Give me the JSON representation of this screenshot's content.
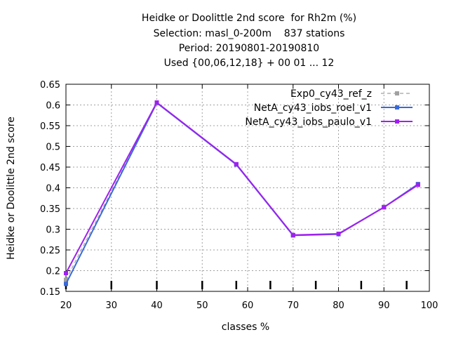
{
  "chart_data": {
    "type": "line",
    "title_lines": [
      "Heidke or Doolittle 2nd score  for Rh2m (%)",
      "Selection: masl_0-200m    837 stations",
      "Period: 20190801-20190810",
      "Used {00,06,12,18} + 00 01 ... 12"
    ],
    "xlabel": "classes %",
    "ylabel": "Heidke or Doolittle 2nd score",
    "xlim": [
      20,
      100
    ],
    "ylim": [
      0.15,
      0.65
    ],
    "xticks": [
      "20",
      "30",
      "40",
      "50",
      "60",
      "70",
      "80",
      "90",
      "100"
    ],
    "yticks": [
      "0.15",
      "0.2",
      "0.25",
      "0.3",
      "0.35",
      "0.4",
      "0.45",
      "0.5",
      "0.55",
      "0.6",
      "0.65"
    ],
    "grid": true,
    "legend_position": "top-right",
    "class_marks": [
      20,
      30,
      40,
      50,
      57.5,
      65,
      75,
      85,
      95
    ],
    "series": [
      {
        "name": "Exp0_cy43_ref_z",
        "color": "#a0a0a0",
        "dash": true,
        "x": [
          20,
          40,
          57.5,
          70,
          80,
          90,
          97.5
        ],
        "y": [
          0.178,
          0.605,
          0.457,
          0.286,
          0.289,
          0.354,
          0.409
        ]
      },
      {
        "name": "NetA_cy43_iobs_roel_v1",
        "color": "#3a6ad8",
        "dash": false,
        "x": [
          20,
          40,
          57.5,
          70,
          80,
          90,
          97.5
        ],
        "y": [
          0.168,
          0.605,
          0.456,
          0.285,
          0.288,
          0.353,
          0.409
        ]
      },
      {
        "name": "NetA_cy43_iobs_paulo_v1",
        "color": "#a020f0",
        "dash": false,
        "x": [
          20,
          40,
          57.5,
          70,
          80,
          90,
          97.5
        ],
        "y": [
          0.194,
          0.606,
          0.457,
          0.286,
          0.289,
          0.353,
          0.407
        ]
      }
    ]
  }
}
